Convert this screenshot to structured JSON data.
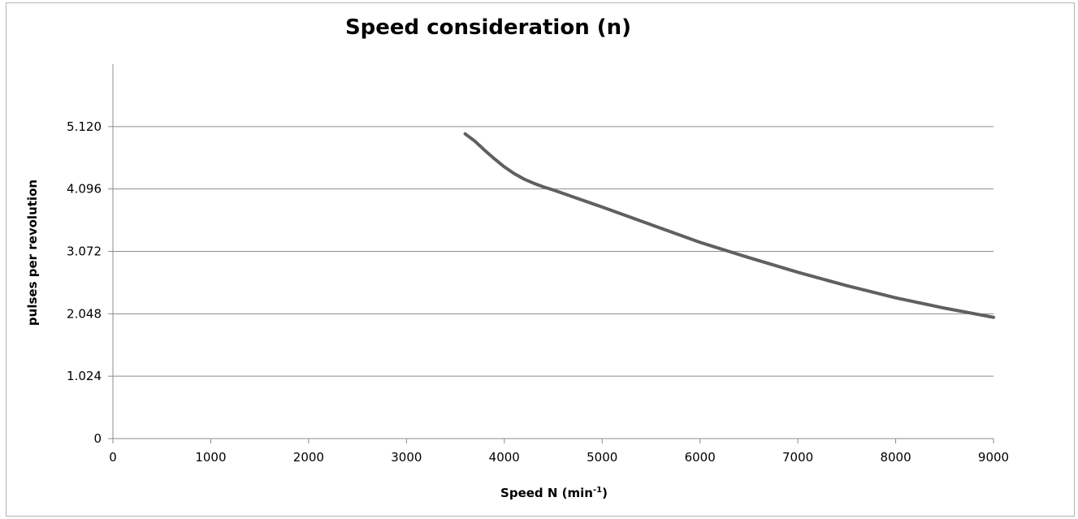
{
  "chart_data": {
    "type": "line",
    "title": "Speed consideration (n)",
    "xlabel": {
      "main": "Speed N (min",
      "sup": "-1",
      "close": ")"
    },
    "ylabel": "pulses per revolution",
    "xlim": [
      0,
      9000
    ],
    "ylim": [
      0,
      6144
    ],
    "x_ticks": [
      0,
      1000,
      2000,
      3000,
      4000,
      5000,
      6000,
      7000,
      8000,
      9000
    ],
    "x_tick_labels": [
      "0",
      "1000",
      "2000",
      "3000",
      "4000",
      "5000",
      "6000",
      "7000",
      "8000",
      "9000"
    ],
    "y_ticks": [
      0,
      1024,
      2048,
      3072,
      4096,
      5120
    ],
    "y_tick_labels": [
      "0",
      "1.024",
      "2.048",
      "3.072",
      "4.096",
      "5.120"
    ],
    "grid": "horizontal",
    "legend": "none",
    "line_color": "#606060",
    "series": [
      {
        "x": [
          3600,
          3700,
          3800,
          3900,
          4000,
          4100,
          4200,
          4300,
          4400,
          4500,
          4750,
          5000,
          5500,
          6000,
          6500,
          7000,
          7500,
          8000,
          8500,
          9000
        ],
        "values": [
          5000,
          4880,
          4730,
          4590,
          4460,
          4350,
          4260,
          4190,
          4130,
          4080,
          3940,
          3800,
          3510,
          3220,
          2970,
          2730,
          2510,
          2310,
          2140,
          1990
        ]
      }
    ]
  }
}
